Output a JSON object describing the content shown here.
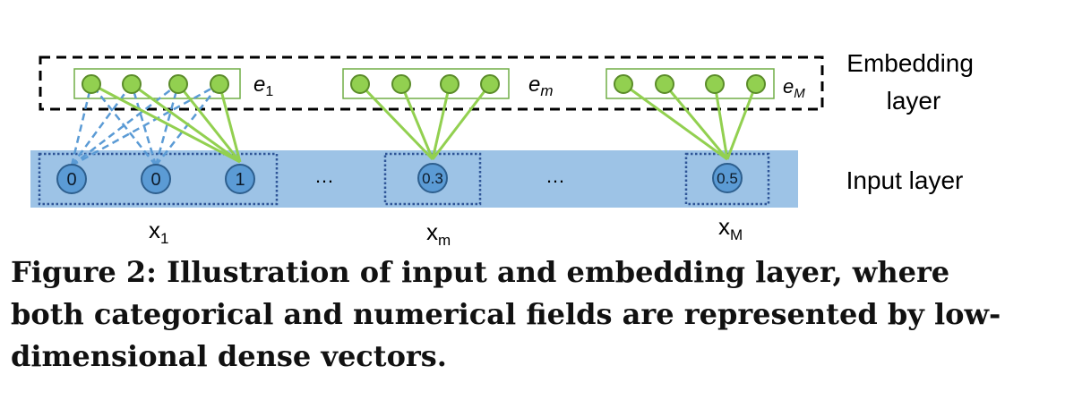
{
  "diagram": {
    "embedding_layer_label": [
      "Embedding",
      "layer"
    ],
    "input_layer_label": "Input layer",
    "ellipsis": "…",
    "embeddings": [
      {
        "label_base": "e",
        "label_sub": "1"
      },
      {
        "label_base": "e",
        "label_sub": "m"
      },
      {
        "label_base": "e",
        "label_sub": "M"
      }
    ],
    "fields": [
      {
        "label_base": "x",
        "label_sub": "1",
        "values": [
          "0",
          "0",
          "1"
        ]
      },
      {
        "label_base": "x",
        "label_sub": "m",
        "values": [
          "0.3"
        ]
      },
      {
        "label_base": "x",
        "label_sub": "M",
        "values": [
          "0.5"
        ]
      }
    ],
    "colors": {
      "input_band": "#9DC3E6",
      "input_node": "#5B9BD5",
      "input_node_stroke": "#2E5F8E",
      "embed_node": "#92D050",
      "embed_node_stroke": "#5B8C2A",
      "embed_box_stroke": "#70AD47",
      "solid_edge": "#92D050",
      "dashed_edge": "#5B9BD5",
      "field_box": "#2F5597"
    }
  },
  "caption": "Figure 2: Illustration of input and embedding layer, where\nboth categorical and numerical fields are represented by low-\ndimensional dense vectors."
}
